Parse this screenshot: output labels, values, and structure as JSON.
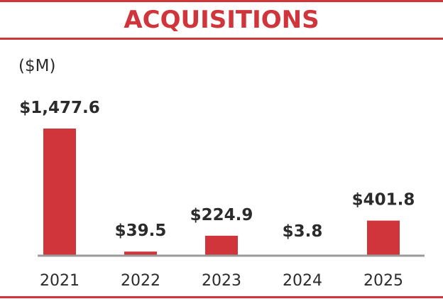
{
  "colors": {
    "accent": "#d0353b",
    "text": "#2b2b2b",
    "axis": "#9a9a9a"
  },
  "header": {
    "title": "ACQUISITIONS",
    "unit": "($M)"
  },
  "chart_data": {
    "type": "bar",
    "title": "ACQUISITIONS",
    "ylabel": "($M)",
    "xlabel": "",
    "categories": [
      "2021",
      "2022",
      "2023",
      "2024",
      "2025"
    ],
    "values": [
      1477.6,
      39.5,
      224.9,
      3.8,
      401.8
    ],
    "value_labels": [
      "$1,477.6",
      "$39.5",
      "$224.9",
      "$3.8",
      "$401.8"
    ],
    "ylim": [
      0,
      1477.6
    ],
    "grid": false,
    "legend": "none"
  }
}
